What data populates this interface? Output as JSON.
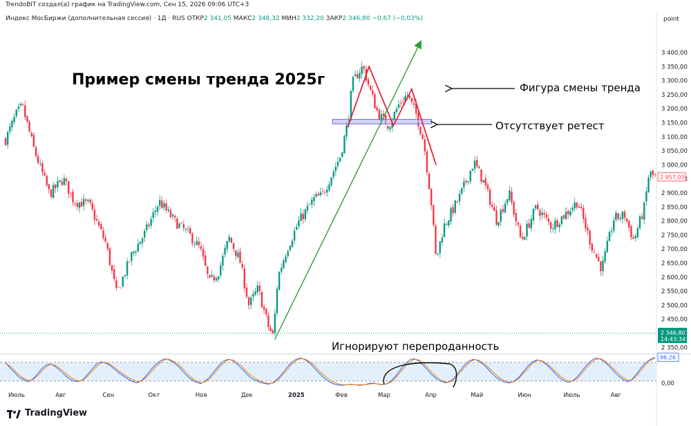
{
  "header": {
    "credit": "TrendoBIT создал(а) график на TradingView.com, Сен 15, 2026 09:06 UTC+3",
    "instrument": "Индекс МосБиржи (дополнительная сессия) · 1Д · RUS",
    "ohlc": [
      {
        "label": "ОТКР",
        "value": "2 341,05"
      },
      {
        "label": "МАКС",
        "value": "2 348,32"
      },
      {
        "label": "МИН",
        "value": "2 332,20"
      },
      {
        "label": "ЗАКР",
        "value": "2 346,80"
      }
    ],
    "change": "−0,67 (−0,03%)"
  },
  "axis_unit": "point",
  "brand": {
    "name": "TradingView"
  },
  "annotations": {
    "title": "Пример смены тренда  2025г",
    "reversal_pattern": "Фигура смены тренда",
    "no_retest": "Отсутствует ретест",
    "oversold": "Игнорируют перепроданность"
  },
  "colors": {
    "up": "#089981",
    "down": "#f23645",
    "trend_line": "#2e9e3b",
    "pattern_line": "#e0263b",
    "zone_fill": "#b8b9f5",
    "zone_stroke": "#6566d8",
    "osc_k": "#2962ff",
    "osc_d": "#f57c00",
    "osc_band": "#e3f0fb",
    "last_price": "#089981",
    "marker_price": "#f23645"
  },
  "chart_data": [
    {
      "type": "candlestick",
      "title": "",
      "x_ticks": [
        "Июль",
        "Авг",
        "Сен",
        "Окт",
        "Ноя",
        "Дек",
        "2025",
        "Фев",
        "Мар",
        "Апр",
        "Май",
        "Июн",
        "Июль",
        "Авг"
      ],
      "y_ticks": [
        "3 400,00",
        "3 350,00",
        "3 300,00",
        "3 250,00",
        "3 200,00",
        "3 150,00",
        "3 100,00",
        "3 050,00",
        "3 000,00",
        "2 950,00",
        "2 900,00",
        "2 850,00",
        "2 800,00",
        "2 750,00",
        "2 700,00",
        "2 650,00",
        "2 600,00",
        "2 550,00",
        "2 500,00",
        "2 450,00",
        "2 400,00",
        "2 350,00"
      ],
      "ylim": [
        2335,
        3440
      ],
      "price_path": [
        {
          "date": "2024-07-01",
          "close": 3090
        },
        {
          "date": "2024-07-08",
          "close": 3180
        },
        {
          "date": "2024-07-12",
          "close": 3210
        },
        {
          "date": "2024-07-20",
          "close": 3050
        },
        {
          "date": "2024-07-30",
          "close": 2895
        },
        {
          "date": "2024-08-08",
          "close": 2950
        },
        {
          "date": "2024-08-15",
          "close": 2870
        },
        {
          "date": "2024-08-25",
          "close": 2860
        },
        {
          "date": "2024-09-05",
          "close": 2720
        },
        {
          "date": "2024-09-12",
          "close": 2540
        },
        {
          "date": "2024-09-22",
          "close": 2680
        },
        {
          "date": "2024-10-01",
          "close": 2760
        },
        {
          "date": "2024-10-10",
          "close": 2870
        },
        {
          "date": "2024-10-20",
          "close": 2800
        },
        {
          "date": "2024-10-30",
          "close": 2750
        },
        {
          "date": "2024-11-06",
          "close": 2700
        },
        {
          "date": "2024-11-12",
          "close": 2580
        },
        {
          "date": "2024-11-18",
          "close": 2620
        },
        {
          "date": "2024-11-25",
          "close": 2740
        },
        {
          "date": "2024-12-02",
          "close": 2660
        },
        {
          "date": "2024-12-08",
          "close": 2500
        },
        {
          "date": "2024-12-14",
          "close": 2560
        },
        {
          "date": "2024-12-21",
          "close": 2420
        },
        {
          "date": "2024-12-24",
          "close": 2390
        },
        {
          "date": "2024-12-27",
          "close": 2600
        },
        {
          "date": "2025-01-02",
          "close": 2700
        },
        {
          "date": "2025-01-10",
          "close": 2800
        },
        {
          "date": "2025-01-20",
          "close": 2880
        },
        {
          "date": "2025-01-25",
          "close": 2890
        },
        {
          "date": "2025-01-31",
          "close": 2960
        },
        {
          "date": "2025-02-06",
          "close": 3030
        },
        {
          "date": "2025-02-11",
          "close": 3150
        },
        {
          "date": "2025-02-14",
          "close": 3290
        },
        {
          "date": "2025-02-18",
          "close": 3330
        },
        {
          "date": "2025-02-21",
          "close": 3350
        },
        {
          "date": "2025-02-26",
          "close": 3260
        },
        {
          "date": "2025-03-03",
          "close": 3180
        },
        {
          "date": "2025-03-10",
          "close": 3140
        },
        {
          "date": "2025-03-17",
          "close": 3220
        },
        {
          "date": "2025-03-22",
          "close": 3250
        },
        {
          "date": "2025-03-28",
          "close": 3180
        },
        {
          "date": "2025-04-02",
          "close": 3080
        },
        {
          "date": "2025-04-07",
          "close": 2860
        },
        {
          "date": "2025-04-10",
          "close": 2660
        },
        {
          "date": "2025-04-15",
          "close": 2780
        },
        {
          "date": "2025-04-25",
          "close": 2880
        },
        {
          "date": "2025-05-05",
          "close": 3010
        },
        {
          "date": "2025-05-12",
          "close": 2930
        },
        {
          "date": "2025-05-20",
          "close": 2800
        },
        {
          "date": "2025-05-28",
          "close": 2900
        },
        {
          "date": "2025-06-05",
          "close": 2730
        },
        {
          "date": "2025-06-15",
          "close": 2850
        },
        {
          "date": "2025-06-25",
          "close": 2780
        },
        {
          "date": "2025-07-05",
          "close": 2830
        },
        {
          "date": "2025-07-12",
          "close": 2870
        },
        {
          "date": "2025-07-22",
          "close": 2700
        },
        {
          "date": "2025-07-28",
          "close": 2630
        },
        {
          "date": "2025-08-05",
          "close": 2810
        },
        {
          "date": "2025-08-12",
          "close": 2820
        },
        {
          "date": "2025-08-18",
          "close": 2730
        },
        {
          "date": "2025-08-25",
          "close": 2850
        },
        {
          "date": "2025-08-28",
          "close": 2970
        },
        {
          "date": "2025-09-01",
          "close": 2957
        }
      ],
      "price_markers": [
        {
          "label": "2 957,03",
          "value": 2957.03
        },
        {
          "label": "2 346,80",
          "sub": "14:43:34",
          "value": 2346.8
        }
      ],
      "trend_line": {
        "from": [
          "2024-12-25",
          2378
        ],
        "to": [
          "2025-03-31",
          3440
        ]
      },
      "reversal_pattern": [
        [
          "2025-02-11",
          3135
        ],
        [
          "2025-02-25",
          3350
        ],
        [
          "2025-03-13",
          3140
        ],
        [
          "2025-03-25",
          3270
        ],
        [
          "2025-04-10",
          3000
        ]
      ],
      "support_zone": {
        "from": "2025-02-01",
        "to": "2025-04-07",
        "y": [
          3146,
          3162
        ]
      }
    },
    {
      "type": "line",
      "title": "",
      "y_ticks": [
        "0,00"
      ],
      "ylim": [
        0,
        100
      ],
      "bands": [
        20,
        80
      ],
      "last_value": {
        "label": "96,26",
        "value": 96.26
      },
      "series": [
        {
          "values": [
            80,
            62,
            48,
            32,
            24,
            18,
            26,
            42,
            60,
            72,
            75,
            66,
            54,
            40,
            28,
            20,
            18,
            24,
            40,
            58,
            74,
            82,
            78,
            70,
            58,
            46,
            36,
            26,
            18,
            14,
            22,
            38,
            56,
            72,
            84,
            92,
            88,
            80,
            68,
            52,
            36,
            24,
            16,
            12,
            20,
            34,
            52,
            70,
            84,
            90,
            86,
            74,
            60,
            44,
            30,
            22,
            16,
            12,
            10,
            16,
            28,
            46,
            64,
            80,
            90,
            94,
            88,
            78,
            62,
            46,
            32,
            20,
            12,
            8,
            6,
            8,
            10,
            8,
            6,
            8,
            12,
            14,
            10,
            8,
            12,
            22,
            38,
            58,
            76,
            88,
            92,
            84,
            70,
            54,
            38,
            26,
            18,
            14,
            20,
            34,
            52,
            70,
            84,
            90,
            86,
            76,
            62,
            46,
            32,
            22,
            16,
            14,
            20,
            32,
            50,
            68,
            82,
            88,
            84,
            74,
            60,
            44,
            30,
            20,
            16,
            22,
            36,
            54,
            72,
            86,
            94,
            90,
            80,
            66,
            50,
            36,
            24,
            18,
            26,
            44,
            64,
            80,
            90,
            96
          ]
        },
        {
          "values": [
            76,
            68,
            54,
            40,
            28,
            22,
            24,
            36,
            52,
            66,
            74,
            70,
            60,
            48,
            36,
            26,
            20,
            22,
            34,
            50,
            66,
            78,
            80,
            74,
            64,
            52,
            42,
            32,
            24,
            18,
            20,
            32,
            48,
            64,
            78,
            88,
            90,
            84,
            74,
            60,
            44,
            30,
            20,
            14,
            18,
            28,
            44,
            62,
            78,
            88,
            88,
            80,
            68,
            52,
            38,
            28,
            20,
            15,
            12,
            14,
            24,
            40,
            56,
            74,
            86,
            92,
            90,
            82,
            70,
            54,
            40,
            28,
            18,
            12,
            9,
            8,
            9,
            8,
            8,
            8,
            10,
            12,
            11,
            9,
            11,
            18,
            32,
            50,
            68,
            82,
            90,
            88,
            78,
            62,
            46,
            32,
            22,
            16,
            18,
            28,
            46,
            62,
            78,
            88,
            88,
            80,
            68,
            54,
            40,
            28,
            20,
            16,
            18,
            28,
            44,
            60,
            76,
            86,
            86,
            78,
            66,
            52,
            38,
            26,
            20,
            20,
            30,
            46,
            64,
            80,
            90,
            92,
            84,
            72,
            58,
            44,
            30,
            22,
            24,
            38,
            56,
            74,
            86,
            94
          ]
        }
      ]
    }
  ]
}
